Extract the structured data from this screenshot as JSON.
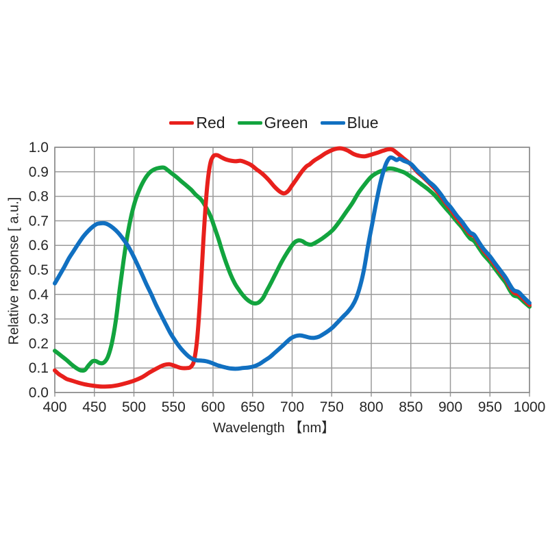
{
  "page": {
    "background": "#ffffff"
  },
  "legend": {
    "items": [
      {
        "label": "Red",
        "color": "#e8201c"
      },
      {
        "label": "Green",
        "color": "#12a43e"
      },
      {
        "label": "Blue",
        "color": "#1170c1"
      }
    ]
  },
  "chart_data": {
    "type": "line",
    "title": "",
    "xlabel": "Wavelength 【nm】",
    "ylabel": "Relative response [ a.u.]",
    "xlim": [
      400,
      1000
    ],
    "ylim": [
      0.0,
      1.0
    ],
    "x_ticks": [
      400,
      450,
      500,
      550,
      600,
      650,
      700,
      750,
      800,
      850,
      900,
      950,
      1000
    ],
    "y_ticks": [
      0.0,
      0.1,
      0.2,
      0.3,
      0.4,
      0.5,
      0.6,
      0.7,
      0.8,
      0.9,
      1.0
    ],
    "grid": true,
    "legend_position": "top",
    "grid_color": "#9a9a9a",
    "text_color": "#262626",
    "line_width": 6,
    "series": [
      {
        "name": "Red",
        "color": "#e8201c",
        "points": [
          [
            400,
            0.09
          ],
          [
            405,
            0.075
          ],
          [
            410,
            0.065
          ],
          [
            415,
            0.055
          ],
          [
            420,
            0.05
          ],
          [
            430,
            0.04
          ],
          [
            440,
            0.032
          ],
          [
            450,
            0.027
          ],
          [
            455,
            0.025
          ],
          [
            460,
            0.024
          ],
          [
            470,
            0.025
          ],
          [
            480,
            0.03
          ],
          [
            490,
            0.038
          ],
          [
            500,
            0.048
          ],
          [
            510,
            0.062
          ],
          [
            520,
            0.082
          ],
          [
            530,
            0.1
          ],
          [
            538,
            0.112
          ],
          [
            545,
            0.115
          ],
          [
            552,
            0.108
          ],
          [
            560,
            0.1
          ],
          [
            568,
            0.1
          ],
          [
            572,
            0.105
          ],
          [
            576,
            0.13
          ],
          [
            580,
            0.22
          ],
          [
            584,
            0.4
          ],
          [
            588,
            0.63
          ],
          [
            592,
            0.82
          ],
          [
            596,
            0.925
          ],
          [
            600,
            0.962
          ],
          [
            605,
            0.968
          ],
          [
            610,
            0.96
          ],
          [
            615,
            0.952
          ],
          [
            620,
            0.947
          ],
          [
            628,
            0.943
          ],
          [
            635,
            0.945
          ],
          [
            640,
            0.94
          ],
          [
            648,
            0.928
          ],
          [
            655,
            0.91
          ],
          [
            662,
            0.893
          ],
          [
            670,
            0.868
          ],
          [
            678,
            0.838
          ],
          [
            685,
            0.818
          ],
          [
            690,
            0.812
          ],
          [
            695,
            0.822
          ],
          [
            700,
            0.845
          ],
          [
            706,
            0.872
          ],
          [
            712,
            0.9
          ],
          [
            718,
            0.922
          ],
          [
            722,
            0.93
          ],
          [
            728,
            0.946
          ],
          [
            735,
            0.96
          ],
          [
            742,
            0.975
          ],
          [
            750,
            0.988
          ],
          [
            757,
            0.995
          ],
          [
            763,
            0.995
          ],
          [
            770,
            0.987
          ],
          [
            778,
            0.972
          ],
          [
            785,
            0.965
          ],
          [
            792,
            0.963
          ],
          [
            800,
            0.97
          ],
          [
            808,
            0.978
          ],
          [
            815,
            0.986
          ],
          [
            822,
            0.992
          ],
          [
            827,
            0.99
          ],
          [
            832,
            0.978
          ],
          [
            840,
            0.957
          ],
          [
            850,
            0.93
          ],
          [
            858,
            0.9
          ],
          [
            865,
            0.88
          ],
          [
            872,
            0.858
          ],
          [
            880,
            0.832
          ],
          [
            888,
            0.8
          ],
          [
            895,
            0.768
          ],
          [
            900,
            0.748
          ],
          [
            908,
            0.712
          ],
          [
            915,
            0.685
          ],
          [
            920,
            0.665
          ],
          [
            925,
            0.645
          ],
          [
            930,
            0.638
          ],
          [
            936,
            0.607
          ],
          [
            942,
            0.578
          ],
          [
            950,
            0.547
          ],
          [
            958,
            0.512
          ],
          [
            965,
            0.483
          ],
          [
            970,
            0.462
          ],
          [
            975,
            0.432
          ],
          [
            980,
            0.408
          ],
          [
            986,
            0.4
          ],
          [
            992,
            0.382
          ],
          [
            1000,
            0.357
          ]
        ]
      },
      {
        "name": "Green",
        "color": "#12a43e",
        "points": [
          [
            400,
            0.17
          ],
          [
            408,
            0.15
          ],
          [
            415,
            0.132
          ],
          [
            422,
            0.112
          ],
          [
            428,
            0.098
          ],
          [
            433,
            0.09
          ],
          [
            438,
            0.092
          ],
          [
            443,
            0.112
          ],
          [
            448,
            0.128
          ],
          [
            452,
            0.128
          ],
          [
            457,
            0.12
          ],
          [
            462,
            0.122
          ],
          [
            467,
            0.145
          ],
          [
            472,
            0.2
          ],
          [
            477,
            0.29
          ],
          [
            482,
            0.42
          ],
          [
            487,
            0.54
          ],
          [
            492,
            0.645
          ],
          [
            497,
            0.725
          ],
          [
            502,
            0.785
          ],
          [
            508,
            0.835
          ],
          [
            514,
            0.872
          ],
          [
            520,
            0.897
          ],
          [
            526,
            0.91
          ],
          [
            532,
            0.916
          ],
          [
            538,
            0.917
          ],
          [
            543,
            0.906
          ],
          [
            548,
            0.893
          ],
          [
            554,
            0.878
          ],
          [
            560,
            0.861
          ],
          [
            566,
            0.845
          ],
          [
            572,
            0.828
          ],
          [
            578,
            0.807
          ],
          [
            584,
            0.79
          ],
          [
            588,
            0.773
          ],
          [
            592,
            0.75
          ],
          [
            597,
            0.718
          ],
          [
            602,
            0.672
          ],
          [
            607,
            0.625
          ],
          [
            612,
            0.572
          ],
          [
            617,
            0.525
          ],
          [
            622,
            0.483
          ],
          [
            627,
            0.448
          ],
          [
            632,
            0.422
          ],
          [
            637,
            0.4
          ],
          [
            642,
            0.382
          ],
          [
            648,
            0.368
          ],
          [
            653,
            0.363
          ],
          [
            658,
            0.368
          ],
          [
            663,
            0.385
          ],
          [
            668,
            0.415
          ],
          [
            674,
            0.452
          ],
          [
            680,
            0.49
          ],
          [
            686,
            0.528
          ],
          [
            692,
            0.562
          ],
          [
            698,
            0.592
          ],
          [
            703,
            0.612
          ],
          [
            708,
            0.62
          ],
          [
            713,
            0.617
          ],
          [
            718,
            0.607
          ],
          [
            724,
            0.603
          ],
          [
            730,
            0.612
          ],
          [
            738,
            0.628
          ],
          [
            745,
            0.645
          ],
          [
            752,
            0.665
          ],
          [
            760,
            0.698
          ],
          [
            768,
            0.735
          ],
          [
            776,
            0.772
          ],
          [
            784,
            0.815
          ],
          [
            792,
            0.85
          ],
          [
            800,
            0.88
          ],
          [
            808,
            0.897
          ],
          [
            815,
            0.906
          ],
          [
            822,
            0.913
          ],
          [
            828,
            0.912
          ],
          [
            835,
            0.905
          ],
          [
            842,
            0.897
          ],
          [
            850,
            0.88
          ],
          [
            858,
            0.862
          ],
          [
            865,
            0.845
          ],
          [
            872,
            0.828
          ],
          [
            880,
            0.805
          ],
          [
            888,
            0.775
          ],
          [
            895,
            0.748
          ],
          [
            900,
            0.73
          ],
          [
            908,
            0.698
          ],
          [
            915,
            0.672
          ],
          [
            920,
            0.648
          ],
          [
            925,
            0.628
          ],
          [
            930,
            0.618
          ],
          [
            936,
            0.59
          ],
          [
            942,
            0.562
          ],
          [
            950,
            0.533
          ],
          [
            958,
            0.498
          ],
          [
            965,
            0.468
          ],
          [
            970,
            0.447
          ],
          [
            975,
            0.418
          ],
          [
            980,
            0.396
          ],
          [
            986,
            0.39
          ],
          [
            992,
            0.372
          ],
          [
            1000,
            0.35
          ]
        ]
      },
      {
        "name": "Blue",
        "color": "#1170c1",
        "points": [
          [
            400,
            0.445
          ],
          [
            406,
            0.478
          ],
          [
            412,
            0.512
          ],
          [
            418,
            0.548
          ],
          [
            424,
            0.578
          ],
          [
            430,
            0.608
          ],
          [
            436,
            0.636
          ],
          [
            442,
            0.658
          ],
          [
            448,
            0.676
          ],
          [
            453,
            0.687
          ],
          [
            458,
            0.69
          ],
          [
            463,
            0.69
          ],
          [
            468,
            0.684
          ],
          [
            474,
            0.67
          ],
          [
            480,
            0.652
          ],
          [
            486,
            0.628
          ],
          [
            492,
            0.6
          ],
          [
            498,
            0.565
          ],
          [
            504,
            0.525
          ],
          [
            510,
            0.483
          ],
          [
            516,
            0.44
          ],
          [
            522,
            0.4
          ],
          [
            528,
            0.357
          ],
          [
            534,
            0.318
          ],
          [
            540,
            0.28
          ],
          [
            546,
            0.243
          ],
          [
            552,
            0.212
          ],
          [
            558,
            0.185
          ],
          [
            564,
            0.163
          ],
          [
            570,
            0.145
          ],
          [
            575,
            0.135
          ],
          [
            580,
            0.131
          ],
          [
            586,
            0.13
          ],
          [
            592,
            0.127
          ],
          [
            598,
            0.121
          ],
          [
            604,
            0.113
          ],
          [
            610,
            0.107
          ],
          [
            616,
            0.102
          ],
          [
            622,
            0.098
          ],
          [
            630,
            0.097
          ],
          [
            638,
            0.1
          ],
          [
            645,
            0.102
          ],
          [
            652,
            0.107
          ],
          [
            658,
            0.115
          ],
          [
            665,
            0.13
          ],
          [
            672,
            0.145
          ],
          [
            678,
            0.162
          ],
          [
            685,
            0.182
          ],
          [
            692,
            0.203
          ],
          [
            698,
            0.22
          ],
          [
            704,
            0.23
          ],
          [
            710,
            0.233
          ],
          [
            716,
            0.229
          ],
          [
            722,
            0.224
          ],
          [
            728,
            0.223
          ],
          [
            734,
            0.228
          ],
          [
            740,
            0.239
          ],
          [
            746,
            0.252
          ],
          [
            752,
            0.268
          ],
          [
            758,
            0.288
          ],
          [
            764,
            0.308
          ],
          [
            770,
            0.328
          ],
          [
            776,
            0.353
          ],
          [
            781,
            0.385
          ],
          [
            786,
            0.435
          ],
          [
            791,
            0.505
          ],
          [
            796,
            0.6
          ],
          [
            801,
            0.685
          ],
          [
            806,
            0.77
          ],
          [
            811,
            0.848
          ],
          [
            816,
            0.908
          ],
          [
            820,
            0.942
          ],
          [
            824,
            0.958
          ],
          [
            828,
            0.955
          ],
          [
            832,
            0.948
          ],
          [
            836,
            0.953
          ],
          [
            841,
            0.945
          ],
          [
            850,
            0.932
          ],
          [
            858,
            0.905
          ],
          [
            865,
            0.885
          ],
          [
            872,
            0.862
          ],
          [
            880,
            0.84
          ],
          [
            888,
            0.808
          ],
          [
            895,
            0.775
          ],
          [
            900,
            0.757
          ],
          [
            908,
            0.722
          ],
          [
            915,
            0.695
          ],
          [
            920,
            0.672
          ],
          [
            925,
            0.652
          ],
          [
            930,
            0.643
          ],
          [
            936,
            0.613
          ],
          [
            942,
            0.585
          ],
          [
            950,
            0.555
          ],
          [
            958,
            0.52
          ],
          [
            965,
            0.49
          ],
          [
            970,
            0.468
          ],
          [
            975,
            0.44
          ],
          [
            980,
            0.417
          ],
          [
            986,
            0.41
          ],
          [
            992,
            0.39
          ],
          [
            1000,
            0.365
          ]
        ]
      }
    ]
  }
}
